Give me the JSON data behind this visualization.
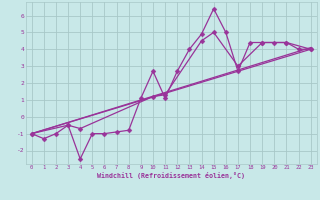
{
  "background_color": "#c8e8e8",
  "grid_color": "#a8c8c8",
  "line_color": "#993399",
  "marker_color": "#993399",
  "xlabel": "Windchill (Refroidissement éolien,°C)",
  "xlim": [
    -0.5,
    23.5
  ],
  "ylim": [
    -2.8,
    6.8
  ],
  "xticks": [
    0,
    1,
    2,
    3,
    4,
    5,
    6,
    7,
    8,
    9,
    10,
    11,
    12,
    13,
    14,
    15,
    16,
    17,
    18,
    19,
    20,
    21,
    22,
    23
  ],
  "yticks": [
    -2,
    -1,
    0,
    1,
    2,
    3,
    4,
    5,
    6
  ],
  "series": [
    {
      "x": [
        0,
        1,
        2,
        3,
        4,
        5,
        6,
        7,
        8,
        9,
        10,
        11,
        12,
        13,
        14,
        15,
        16,
        17,
        18,
        19,
        20,
        21,
        22,
        23
      ],
      "y": [
        -1.0,
        -1.3,
        -1.0,
        -0.5,
        -2.5,
        -1.0,
        -1.0,
        -0.9,
        -0.8,
        1.1,
        2.7,
        1.1,
        2.7,
        4.0,
        4.9,
        6.4,
        5.0,
        2.7,
        4.4,
        4.4,
        4.4,
        4.4,
        4.0,
        4.0
      ],
      "marker": "D",
      "markersize": 2.5,
      "linewidth": 0.9
    },
    {
      "x": [
        0,
        3,
        4,
        10,
        11,
        14,
        15,
        17,
        19,
        21,
        23
      ],
      "y": [
        -1.0,
        -0.5,
        -0.7,
        1.2,
        1.3,
        4.5,
        5.0,
        3.0,
        4.4,
        4.4,
        4.0
      ],
      "marker": "D",
      "markersize": 2.5,
      "linewidth": 0.9
    },
    {
      "x": [
        0,
        23
      ],
      "y": [
        -1.0,
        4.0
      ],
      "marker": null,
      "markersize": 0,
      "linewidth": 0.9
    },
    {
      "x": [
        0,
        23
      ],
      "y": [
        -1.0,
        4.1
      ],
      "marker": null,
      "markersize": 0,
      "linewidth": 0.9
    }
  ]
}
